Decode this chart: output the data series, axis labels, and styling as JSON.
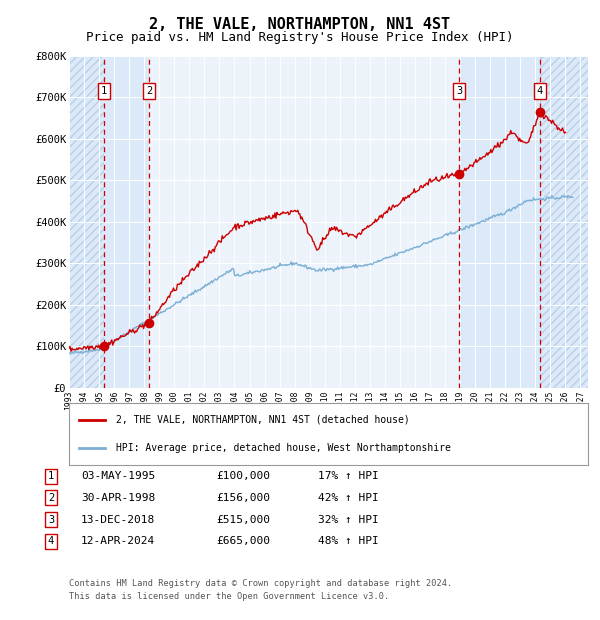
{
  "title": "2, THE VALE, NORTHAMPTON, NN1 4ST",
  "subtitle": "Price paid vs. HM Land Registry's House Price Index (HPI)",
  "title_fontsize": 11,
  "subtitle_fontsize": 9,
  "background_color": "#ffffff",
  "plot_bg_color": "#dce9f8",
  "grid_color": "#ffffff",
  "hpi_line_color": "#7bafd4",
  "price_line_color": "#cc0000",
  "sale_marker_color": "#cc0000",
  "dashed_line_color": "#cc0000",
  "transactions": [
    {
      "num": 1,
      "date": "03-MAY-1995",
      "price": 100000,
      "year": 1995.34,
      "pct": "17% ↑ HPI"
    },
    {
      "num": 2,
      "date": "30-APR-1998",
      "price": 156000,
      "year": 1998.33,
      "pct": "42% ↑ HPI"
    },
    {
      "num": 3,
      "date": "13-DEC-2018",
      "price": 515000,
      "year": 2018.95,
      "pct": "32% ↑ HPI"
    },
    {
      "num": 4,
      "date": "12-APR-2024",
      "price": 665000,
      "year": 2024.28,
      "pct": "48% ↑ HPI"
    }
  ],
  "legend_line1": "2, THE VALE, NORTHAMPTON, NN1 4ST (detached house)",
  "legend_line2": "HPI: Average price, detached house, West Northamptonshire",
  "footnote1": "Contains HM Land Registry data © Crown copyright and database right 2024.",
  "footnote2": "This data is licensed under the Open Government Licence v3.0.",
  "ylim": [
    0,
    800000
  ],
  "xlim_start": 1993.0,
  "xlim_end": 2027.5,
  "yticks": [
    0,
    100000,
    200000,
    300000,
    400000,
    500000,
    600000,
    700000,
    800000
  ],
  "ytick_labels": [
    "£0",
    "£100K",
    "£200K",
    "£300K",
    "£400K",
    "£500K",
    "£600K",
    "£700K",
    "£800K"
  ]
}
